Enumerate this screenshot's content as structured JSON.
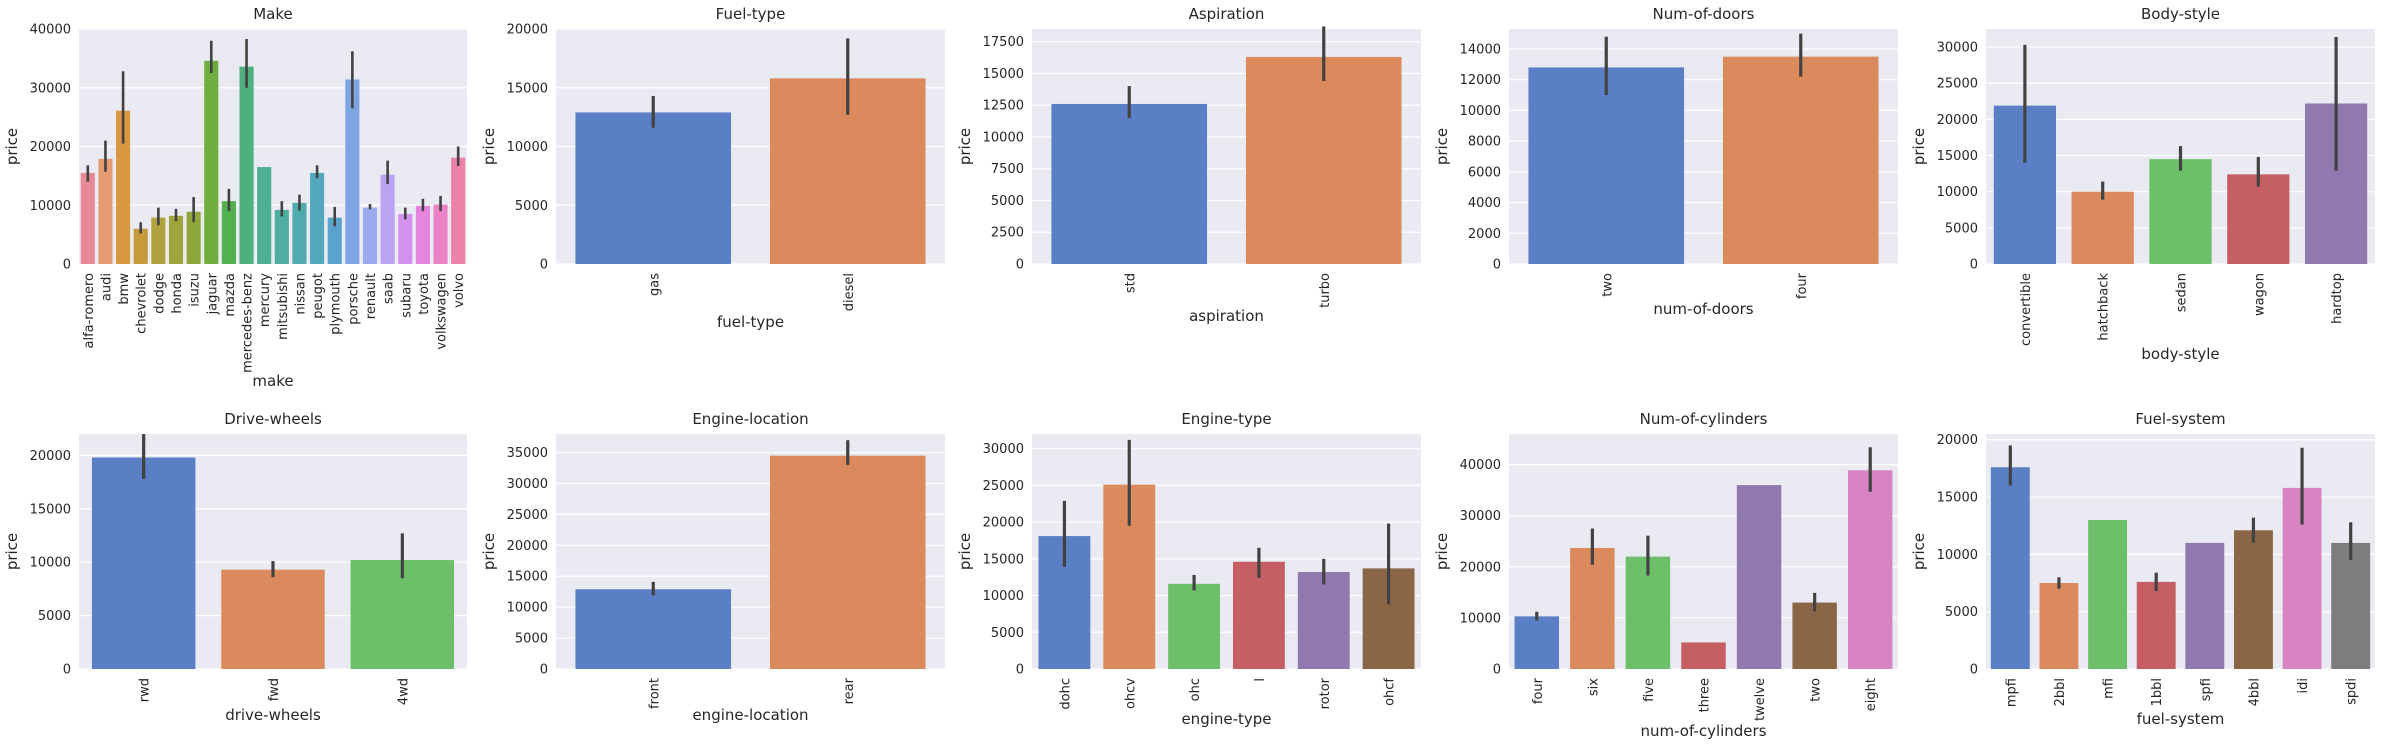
{
  "chart_data": [
    {
      "type": "bar",
      "title": "Make",
      "xlabel": "make",
      "ylabel": "price",
      "ylim": [
        0,
        40000
      ],
      "yticks": [
        0,
        10000,
        20000,
        30000,
        40000
      ],
      "categories": [
        "alfa-romero",
        "audi",
        "bmw",
        "chevrolet",
        "dodge",
        "honda",
        "isuzu",
        "jaguar",
        "mazda",
        "mercedes-benz",
        "mercury",
        "mitsubishi",
        "nissan",
        "peugot",
        "plymouth",
        "porsche",
        "renault",
        "saab",
        "subaru",
        "toyota",
        "volkswagen",
        "volvo"
      ],
      "values": [
        15500,
        17900,
        26100,
        6000,
        7900,
        8200,
        8900,
        34600,
        10700,
        33600,
        16500,
        9200,
        10400,
        15500,
        7900,
        31400,
        9600,
        15200,
        8500,
        9900,
        10100,
        18100
      ],
      "ci": [
        [
          14000,
          16800
        ],
        [
          15700,
          21000
        ],
        [
          20500,
          32800
        ],
        [
          5200,
          7100
        ],
        [
          6600,
          9600
        ],
        [
          7300,
          9400
        ],
        [
          7100,
          11400
        ],
        [
          32500,
          38000
        ],
        [
          9000,
          12800
        ],
        [
          30000,
          38300
        ],
        [
          16500,
          16500
        ],
        [
          8100,
          10700
        ],
        [
          9100,
          11800
        ],
        [
          14600,
          16800
        ],
        [
          6400,
          9700
        ],
        [
          26500,
          36200
        ],
        [
          9300,
          10200
        ],
        [
          13600,
          17600
        ],
        [
          7600,
          9600
        ],
        [
          9000,
          11100
        ],
        [
          9000,
          11600
        ],
        [
          16700,
          20000
        ]
      ],
      "colors": [
        "#E88A96",
        "#E59A73",
        "#D8983E",
        "#C59A3A",
        "#B1A23D",
        "#A0A43D",
        "#8EA83B",
        "#6FAE3E",
        "#52B04E",
        "#4EB07C",
        "#4FAF93",
        "#4FADA2",
        "#50ABB0",
        "#53A8BE",
        "#5AA4CC",
        "#7CA5E2",
        "#9DA9EF",
        "#B9A4F2",
        "#D291EF",
        "#E685DE",
        "#EB82C5",
        "#EB82A8"
      ]
    },
    {
      "type": "bar",
      "title": "Fuel-type",
      "xlabel": "fuel-type",
      "ylabel": "price",
      "ylim": [
        0,
        20000
      ],
      "yticks": [
        0,
        5000,
        10000,
        15000,
        20000
      ],
      "categories": [
        "gas",
        "diesel"
      ],
      "values": [
        12900,
        15800
      ],
      "ci": [
        [
          11600,
          14300
        ],
        [
          12700,
          19200
        ]
      ],
      "colors": [
        "#5A7FC4",
        "#DB8A5D"
      ]
    },
    {
      "type": "bar",
      "title": "Aspiration",
      "xlabel": "aspiration",
      "ylabel": "price",
      "ylim": [
        0,
        18500
      ],
      "yticks": [
        0,
        2500,
        5000,
        7500,
        10000,
        12500,
        15000,
        17500
      ],
      "categories": [
        "std",
        "turbo"
      ],
      "values": [
        12600,
        16300
      ],
      "ci": [
        [
          11500,
          14000
        ],
        [
          14400,
          18700
        ]
      ],
      "colors": [
        "#5A7FC4",
        "#DB8A5D"
      ]
    },
    {
      "type": "bar",
      "title": "Num-of-doors",
      "xlabel": "num-of-doors",
      "ylabel": "price",
      "ylim": [
        0,
        15300
      ],
      "yticks": [
        0,
        2000,
        4000,
        6000,
        8000,
        10000,
        12000,
        14000
      ],
      "categories": [
        "two",
        "four"
      ],
      "values": [
        12800,
        13500
      ],
      "ci": [
        [
          11000,
          14800
        ],
        [
          12200,
          15000
        ]
      ],
      "colors": [
        "#5A7FC4",
        "#DB8A5D"
      ]
    },
    {
      "type": "bar",
      "title": "Body-style",
      "xlabel": "body-style",
      "ylabel": "price",
      "ylim": [
        0,
        32500
      ],
      "yticks": [
        0,
        5000,
        10000,
        15000,
        20000,
        25000,
        30000
      ],
      "categories": [
        "convertible",
        "hatchback",
        "sedan",
        "wagon",
        "hardtop"
      ],
      "values": [
        21900,
        10000,
        14500,
        12400,
        22200
      ],
      "ci": [
        [
          14000,
          30300
        ],
        [
          8900,
          11400
        ],
        [
          12900,
          16300
        ],
        [
          10700,
          14800
        ],
        [
          12900,
          31400
        ]
      ],
      "colors": [
        "#5A7FC4",
        "#DB8A5D",
        "#6DBF6A",
        "#C65F63",
        "#9079AE"
      ]
    },
    {
      "type": "bar",
      "title": "Drive-wheels",
      "xlabel": "drive-wheels",
      "ylabel": "price",
      "ylim": [
        0,
        22000
      ],
      "yticks": [
        0,
        5000,
        10000,
        15000,
        20000
      ],
      "categories": [
        "rwd",
        "fwd",
        "4wd"
      ],
      "values": [
        19800,
        9300,
        10200
      ],
      "ci": [
        [
          17800,
          22000
        ],
        [
          8600,
          10100
        ],
        [
          8500,
          12700
        ]
      ],
      "colors": [
        "#5A7FC4",
        "#DB8A5D",
        "#6DBF6A"
      ]
    },
    {
      "type": "bar",
      "title": "Engine-location",
      "xlabel": "engine-location",
      "ylabel": "price",
      "ylim": [
        0,
        38000
      ],
      "yticks": [
        0,
        5000,
        10000,
        15000,
        20000,
        25000,
        30000,
        35000
      ],
      "categories": [
        "front",
        "rear"
      ],
      "values": [
        12900,
        34500
      ],
      "ci": [
        [
          11900,
          14100
        ],
        [
          33000,
          37000
        ]
      ],
      "colors": [
        "#5A7FC4",
        "#DB8A5D"
      ]
    },
    {
      "type": "bar",
      "title": "Engine-type",
      "xlabel": "engine-type",
      "ylabel": "price",
      "ylim": [
        0,
        32000
      ],
      "yticks": [
        0,
        5000,
        10000,
        15000,
        20000,
        25000,
        30000
      ],
      "categories": [
        "dohc",
        "ohcv",
        "ohc",
        "l",
        "rotor",
        "ohcf"
      ],
      "values": [
        18100,
        25100,
        11600,
        14600,
        13200,
        13700
      ],
      "ci": [
        [
          13900,
          22900
        ],
        [
          19500,
          31200
        ],
        [
          10700,
          12800
        ],
        [
          12400,
          16500
        ],
        [
          11500,
          15000
        ],
        [
          8800,
          19800
        ]
      ],
      "colors": [
        "#5A7FC4",
        "#DB8A5D",
        "#6DBF6A",
        "#C65F63",
        "#9079AE",
        "#8A6647"
      ]
    },
    {
      "type": "bar",
      "title": "Num-of-cylinders",
      "xlabel": "num-of-cylinders",
      "ylabel": "price",
      "ylim": [
        0,
        46000
      ],
      "yticks": [
        0,
        10000,
        20000,
        30000,
        40000
      ],
      "categories": [
        "four",
        "six",
        "five",
        "three",
        "twelve",
        "two",
        "eight"
      ],
      "values": [
        10300,
        23700,
        22000,
        5200,
        36000,
        13000,
        38900
      ],
      "ci": [
        [
          9500,
          11200
        ],
        [
          20400,
          27500
        ],
        [
          18300,
          26100
        ],
        [
          5200,
          5200
        ],
        [
          36000,
          36000
        ],
        [
          11300,
          14900
        ],
        [
          34700,
          43400
        ]
      ],
      "colors": [
        "#5A7FC4",
        "#DB8A5D",
        "#6DBF6A",
        "#C65F63",
        "#9079AE",
        "#8A6647",
        "#D884C2"
      ]
    },
    {
      "type": "bar",
      "title": "Fuel-system",
      "xlabel": "fuel-system",
      "ylabel": "price",
      "ylim": [
        0,
        20500
      ],
      "yticks": [
        0,
        5000,
        10000,
        15000,
        20000
      ],
      "categories": [
        "mpfi",
        "2bbl",
        "mfi",
        "1bbl",
        "spfi",
        "4bbl",
        "idi",
        "spdi"
      ],
      "values": [
        17600,
        7500,
        13000,
        7600,
        11000,
        12100,
        15800,
        11000
      ],
      "ci": [
        [
          16000,
          19500
        ],
        [
          7000,
          8000
        ],
        [
          13000,
          13000
        ],
        [
          6800,
          8400
        ],
        [
          11000,
          11000
        ],
        [
          11000,
          13200
        ],
        [
          12600,
          19300
        ],
        [
          9500,
          12800
        ]
      ],
      "colors": [
        "#5A7FC4",
        "#DB8A5D",
        "#6DBF6A",
        "#C65F63",
        "#9079AE",
        "#8A6647",
        "#D884C2",
        "#7D7D7D"
      ]
    }
  ]
}
